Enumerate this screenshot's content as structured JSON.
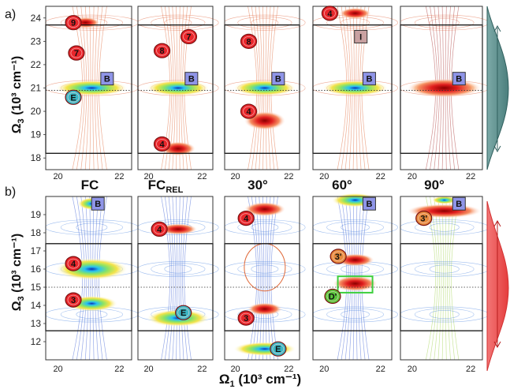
{
  "figure": {
    "panel_a_label": "a)",
    "panel_b_label": "b)",
    "column_titles": [
      "FC",
      "FC",
      "30°",
      "60°",
      "90°"
    ],
    "column_title_subscript": "REL",
    "xaxis_label_main": "Ω",
    "xaxis_label_sub": "1",
    "xaxis_label_units": " (10³ cm⁻¹)",
    "yaxis_label_main": "Ω",
    "yaxis_label_sub": "3",
    "yaxis_label_units": " (10³ cm⁻¹)",
    "x_ticks_a": [
      "20",
      "22"
    ],
    "x_ticks_b": [
      "20",
      "22"
    ],
    "colors": {
      "red_marker": "#e8262b",
      "cyan_marker": "#3bb7c4",
      "orange_marker": "#e68a3c",
      "green_marker": "#59c63b",
      "box_marker": "#8f95e8",
      "side_teal": "#5f8f8d",
      "side_red": "#f05050"
    }
  },
  "chart_data": [
    {
      "type": "heatmap",
      "panel": "a",
      "ylabel": "Ω3 (10³ cm⁻¹)",
      "xlim": [
        20,
        22
      ],
      "ylim": [
        18,
        24.5
      ],
      "yticks": [
        "24",
        "23",
        "22",
        "21",
        "20",
        "19",
        "18"
      ],
      "markers": [
        [
          {
            "label": "9",
            "x": 20.5,
            "y": 23.8,
            "c": "red"
          },
          {
            "label": "7",
            "x": 20.6,
            "y": 22.5,
            "c": "red"
          },
          {
            "label": "B",
            "x": 21.6,
            "y": 21.4,
            "c": "box"
          },
          {
            "label": "E",
            "x": 20.5,
            "y": 20.6,
            "c": "cyan"
          }
        ],
        [
          {
            "label": "7",
            "x": 21.5,
            "y": 23.2,
            "c": "red"
          },
          {
            "label": "8",
            "x": 20.5,
            "y": 22.6,
            "c": "red"
          },
          {
            "label": "B",
            "x": 21.6,
            "y": 21.4,
            "c": "box"
          },
          {
            "label": "4",
            "x": 20.5,
            "y": 18.6,
            "c": "red"
          }
        ],
        [
          {
            "label": "8",
            "x": 20.5,
            "y": 23.0,
            "c": "red"
          },
          {
            "label": "B",
            "x": 21.6,
            "y": 21.4,
            "c": "box"
          },
          {
            "label": "4",
            "x": 20.5,
            "y": 20.0,
            "c": "red"
          }
        ],
        [
          {
            "label": "4",
            "x": 20.2,
            "y": 24.2,
            "c": "red"
          },
          {
            "label": "I",
            "x": 21.3,
            "y": 23.2,
            "c": "gray"
          },
          {
            "label": "B",
            "x": 21.6,
            "y": 21.4,
            "c": "box"
          }
        ],
        [
          {
            "label": "B",
            "x": 21.6,
            "y": 21.4,
            "c": "box"
          }
        ]
      ]
    },
    {
      "type": "heatmap",
      "panel": "b",
      "ylabel": "Ω3 (10³ cm⁻¹)",
      "xlim": [
        20,
        22
      ],
      "ylim": [
        11,
        20
      ],
      "yticks": [
        "19",
        "18",
        "17",
        "16",
        "15",
        "14",
        "13",
        "12"
      ],
      "markers": [
        [
          {
            "label": "B",
            "x": 21.3,
            "y": 19.6,
            "c": "box"
          },
          {
            "label": "4",
            "x": 20.5,
            "y": 16.3,
            "c": "red"
          },
          {
            "label": "3",
            "x": 20.5,
            "y": 14.3,
            "c": "red"
          }
        ],
        [
          {
            "label": "4",
            "x": 20.4,
            "y": 18.2,
            "c": "red"
          },
          {
            "label": "E",
            "x": 21.3,
            "y": 13.6,
            "c": "cyan"
          }
        ],
        [
          {
            "label": "4",
            "x": 20.4,
            "y": 18.8,
            "c": "red"
          },
          {
            "label": "3",
            "x": 20.4,
            "y": 13.3,
            "c": "red"
          },
          {
            "label": "E",
            "x": 21.6,
            "y": 11.6,
            "c": "cyan"
          }
        ],
        [
          {
            "label": "B",
            "x": 21.6,
            "y": 19.6,
            "c": "box"
          },
          {
            "label": "3'",
            "x": 20.5,
            "y": 16.7,
            "c": "orange"
          },
          {
            "label": "D'",
            "x": 20.3,
            "y": 14.5,
            "c": "green"
          }
        ],
        [
          {
            "label": "B",
            "x": 21.6,
            "y": 19.6,
            "c": "box"
          },
          {
            "label": "3'",
            "x": 20.4,
            "y": 18.8,
            "c": "orange"
          }
        ]
      ]
    }
  ]
}
